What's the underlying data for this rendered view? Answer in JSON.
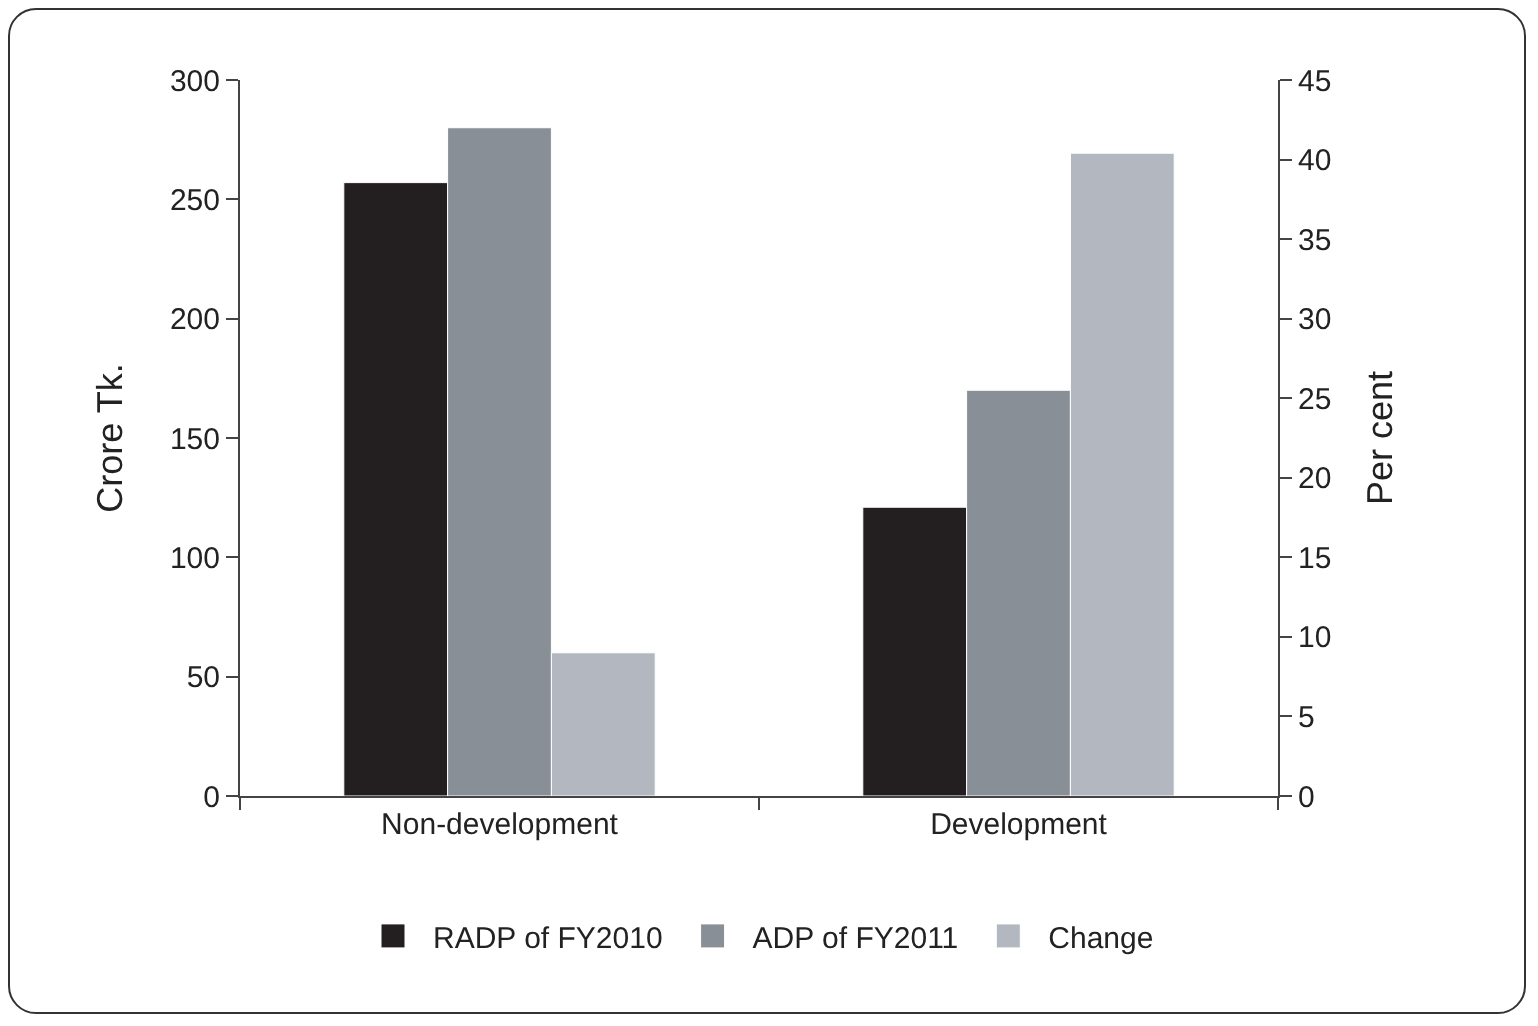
{
  "chart_data": {
    "type": "bar",
    "ylabel": "Crore Tk.",
    "y2label": "Per cent",
    "categories": [
      "Non-development",
      "Development"
    ],
    "series": [
      {
        "name": "RADP of FY2010",
        "color": "#231f20",
        "values": [
          257,
          121
        ]
      },
      {
        "name": "ADP of FY2011",
        "color": "#898f96",
        "values": [
          280,
          170
        ]
      },
      {
        "name": "Change",
        "color": "#b3b8c0",
        "values": [
          9,
          40.4
        ],
        "axis": "y2"
      }
    ],
    "ylim": [
      0,
      300
    ],
    "yticks": [
      0,
      50,
      100,
      150,
      200,
      250,
      300
    ],
    "y2lim": [
      0,
      45
    ],
    "y2ticks": [
      0,
      5,
      10,
      15,
      20,
      25,
      30,
      35,
      40,
      45
    ],
    "grid": false,
    "legend": "bottom"
  }
}
